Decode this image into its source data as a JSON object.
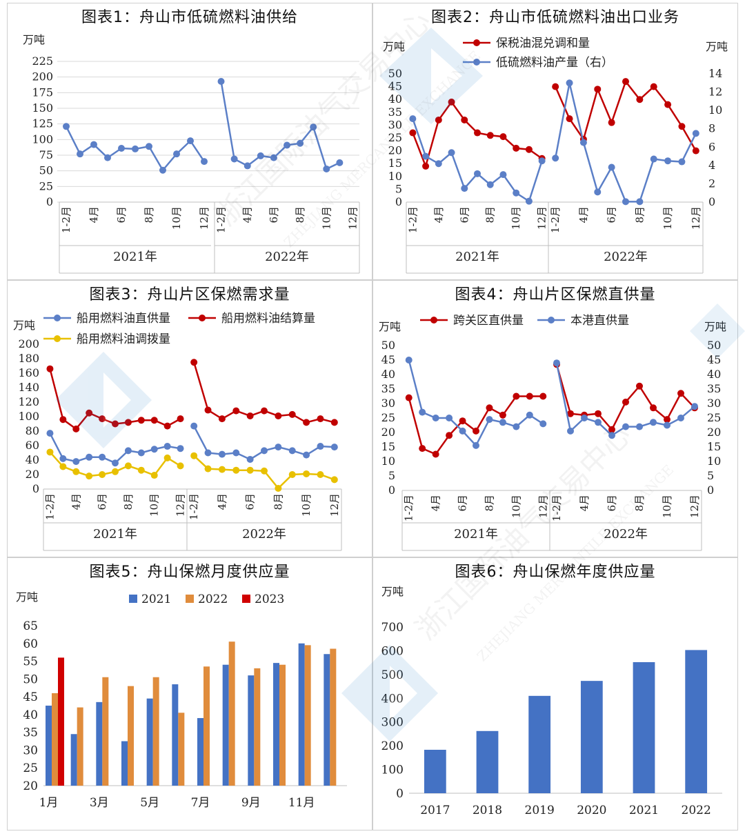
{
  "chart_data": [
    {
      "id": "c1",
      "type": "line",
      "title": "图表1：舟山市低硫燃料油供给",
      "ylabel": "万吨",
      "ylim": [
        0,
        225
      ],
      "yticks": [
        0,
        25,
        50,
        75,
        100,
        125,
        150,
        175,
        200,
        225
      ],
      "grid": true,
      "groups": [
        "2021年",
        "2022年"
      ],
      "categories": [
        "1-2月",
        "3月",
        "4月",
        "5月",
        "6月",
        "7月",
        "8月",
        "9月",
        "10月",
        "11月",
        "12月"
      ],
      "tick_labels": [
        "1-2月",
        "",
        "4月",
        "",
        "6月",
        "",
        "8月",
        "",
        "10月",
        "",
        "12月"
      ],
      "series": [
        {
          "values": [
            [
              121,
              77,
              92,
              71,
              86,
              85,
              89,
              51,
              77,
              98,
              65
            ],
            [
              193,
              69,
              58,
              74,
              71,
              91,
              94,
              120,
              53,
              63,
              null
            ]
          ]
        }
      ]
    },
    {
      "id": "c2",
      "type": "line",
      "title": "图表2：舟山市低硫燃料油出口业务",
      "ylabel": "万吨",
      "y2label": "万吨",
      "ylim": [
        0,
        50
      ],
      "yticks": [
        0,
        5,
        10,
        15,
        20,
        25,
        30,
        35,
        40,
        45,
        50
      ],
      "y2lim": [
        0,
        14
      ],
      "y2ticks": [
        0,
        2,
        4,
        6,
        8,
        10,
        12,
        14
      ],
      "groups": [
        "2021年",
        "2022年"
      ],
      "categories": [
        "1-2月",
        "3月",
        "4月",
        "5月",
        "6月",
        "7月",
        "8月",
        "9月",
        "10月",
        "11月",
        "12月"
      ],
      "tick_labels": [
        "1-2月",
        "",
        "4月",
        "",
        "6月",
        "",
        "8月",
        "",
        "10月",
        "",
        "12月"
      ],
      "legend": "top-left",
      "series": [
        {
          "name": "保税油混兑调和量",
          "axis": "left",
          "color": "#c00000",
          "values": [
            [
              27,
              14,
              32,
              39,
              32,
              27,
              26,
              25.5,
              21,
              20.5,
              17
            ],
            [
              45,
              32.5,
              24.5,
              44,
              31,
              47,
              40,
              45,
              38,
              29.5,
              20
            ]
          ]
        },
        {
          "name": "低硫燃料油产量（右）",
          "axis": "right",
          "color": "#5b7fc7",
          "values": [
            [
              9.1,
              5,
              4.2,
              5.4,
              1.5,
              3.1,
              1.9,
              3.0,
              1.0,
              0.1,
              4.5
            ],
            [
              4.8,
              13,
              6.5,
              1.1,
              3.8,
              0.05,
              0.05,
              4.7,
              4.5,
              4.4,
              7.5
            ]
          ]
        }
      ]
    },
    {
      "id": "c3",
      "type": "line",
      "title": "图表3：舟山片区保燃需求量",
      "ylabel": "万吨",
      "ylim": [
        0,
        200
      ],
      "yticks": [
        0,
        20,
        40,
        60,
        80,
        100,
        120,
        140,
        160,
        180,
        200
      ],
      "groups": [
        "2021年",
        "2022年"
      ],
      "categories": [
        "1-2月",
        "3月",
        "4月",
        "5月",
        "6月",
        "7月",
        "8月",
        "9月",
        "10月",
        "11月",
        "12月"
      ],
      "tick_labels": [
        "1-2月",
        "",
        "4月",
        "",
        "6月",
        "",
        "8月",
        "",
        "10月",
        "",
        "12月"
      ],
      "legend": "top",
      "series": [
        {
          "name": "船用燃料油直供量",
          "color": "#5b7fc7",
          "values": [
            [
              77,
              42,
              38,
              44,
              44,
              36,
              53,
              50,
              55,
              59,
              56
            ],
            [
              87,
              50,
              48,
              50,
              41,
              53,
              58,
              53,
              47,
              59,
              58
            ]
          ]
        },
        {
          "name": "船用燃料油结算量",
          "color": "#c00000",
          "values": [
            [
              166,
              96,
              83,
              105,
              97,
              90,
              92,
              95,
              95,
              87,
              97
            ],
            [
              175,
              109,
              97,
              108,
              101,
              108,
              101,
              103,
              92,
              97,
              92
            ]
          ]
        },
        {
          "name": "船用燃料油调拨量",
          "color": "#e8c000",
          "values": [
            [
              51,
              31,
              24,
              18,
              20,
              24,
              32,
              26,
              19,
              43,
              32
            ],
            [
              46,
              28,
              27,
              26,
              26,
              25,
              1,
              20,
              21,
              20,
              13
            ]
          ]
        }
      ]
    },
    {
      "id": "c4",
      "type": "line",
      "title": "图表4：舟山片区保燃直供量",
      "ylabel": "万吨",
      "y2label": "万吨",
      "ylim": [
        0,
        50
      ],
      "yticks": [
        0,
        5,
        10,
        15,
        20,
        25,
        30,
        35,
        40,
        45,
        50
      ],
      "y2lim": [
        0,
        50
      ],
      "y2ticks": [
        0,
        5,
        10,
        15,
        20,
        25,
        30,
        35,
        40,
        45,
        50
      ],
      "groups": [
        "2021年",
        "2022年"
      ],
      "categories": [
        "1-2月",
        "3月",
        "4月",
        "5月",
        "6月",
        "7月",
        "8月",
        "9月",
        "10月",
        "11月",
        "12月"
      ],
      "tick_labels": [
        "1-2月",
        "",
        "4月",
        "",
        "6月",
        "",
        "8月",
        "",
        "10月",
        "",
        "12月"
      ],
      "legend": "top",
      "series": [
        {
          "name": "跨关区直供量",
          "axis": "left",
          "color": "#c00000",
          "values": [
            [
              32,
              14.5,
              12.5,
              19,
              24,
              20.5,
              28.5,
              26,
              32.5,
              32.5,
              32.5
            ],
            [
              43.5,
              26.5,
              26,
              26.5,
              21,
              30.5,
              36,
              28.5,
              24.5,
              33.5,
              28.5
            ]
          ]
        },
        {
          "name": "本港直供量",
          "axis": "right",
          "color": "#5b7fc7",
          "values": [
            [
              45,
              27,
              25,
              25,
              20.5,
              15.5,
              24.5,
              23.5,
              22,
              26,
              23
            ],
            [
              44,
              20.5,
              25,
              23.5,
              19,
              22,
              22,
              23.5,
              22.5,
              25,
              29
            ]
          ]
        }
      ]
    },
    {
      "id": "c5",
      "type": "bar",
      "title": "图表5：舟山保燃月度供应量",
      "ylabel": "万吨",
      "ylim": [
        20,
        65
      ],
      "yticks": [
        20,
        25,
        30,
        35,
        40,
        45,
        50,
        55,
        60,
        65
      ],
      "categories": [
        "1月",
        "2月",
        "3月",
        "4月",
        "5月",
        "6月",
        "7月",
        "8月",
        "9月",
        "10月",
        "11月",
        "12月"
      ],
      "tick_labels": [
        "1月",
        "",
        "3月",
        "",
        "5月",
        "",
        "7月",
        "",
        "9月",
        "",
        "11月",
        ""
      ],
      "legend": "top",
      "series": [
        {
          "name": "2021",
          "color": "#4472c4",
          "values": [
            42.5,
            34.5,
            43.5,
            32.5,
            44.5,
            48.5,
            39,
            54,
            51,
            54.5,
            60,
            57
          ]
        },
        {
          "name": "2022",
          "color": "#e08c3c",
          "values": [
            46,
            42,
            50.5,
            48,
            50.5,
            40.5,
            53.5,
            60.5,
            53,
            54,
            59.5,
            58.5
          ]
        },
        {
          "name": "2023",
          "color": "#d00000",
          "values": [
            56,
            null,
            null,
            null,
            null,
            null,
            null,
            null,
            null,
            null,
            null,
            null
          ]
        }
      ]
    },
    {
      "id": "c6",
      "type": "bar",
      "title": "图表6：舟山保燃年度供应量",
      "ylabel": "万吨",
      "ylim": [
        0,
        700
      ],
      "yticks": [
        0,
        100,
        200,
        300,
        400,
        500,
        600,
        700
      ],
      "categories": [
        "2017",
        "2018",
        "2019",
        "2020",
        "2021",
        "2022"
      ],
      "tick_labels": [
        "2017",
        "2018",
        "2019",
        "2020",
        "2021",
        "2022"
      ],
      "series": [
        {
          "color": "#4472c4",
          "values": [
            183,
            262,
            410,
            473,
            552,
            603
          ]
        }
      ]
    }
  ],
  "watermark": {
    "text_cn": "浙江国际油气交易中心",
    "text_en": "ZHEJIANG MERCANTILE EXCHANGE"
  }
}
